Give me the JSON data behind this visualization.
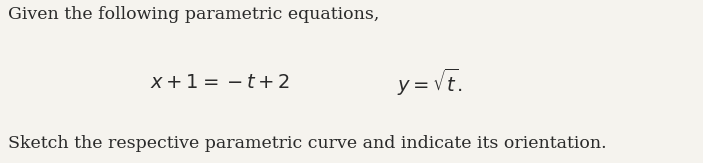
{
  "line1": "Given the following parametric equations,",
  "eq1": "$x+1=-t+2$",
  "eq2": "$y=\\sqrt{t}.$",
  "line3": "Sketch the respective parametric curve and indicate its orientation.",
  "background_color": "#f5f3ee",
  "text_color": "#2a2a2a",
  "fontsize_body": 12.5,
  "fontsize_eq": 14.0,
  "fig_width": 7.03,
  "fig_height": 1.63,
  "dpi": 100
}
